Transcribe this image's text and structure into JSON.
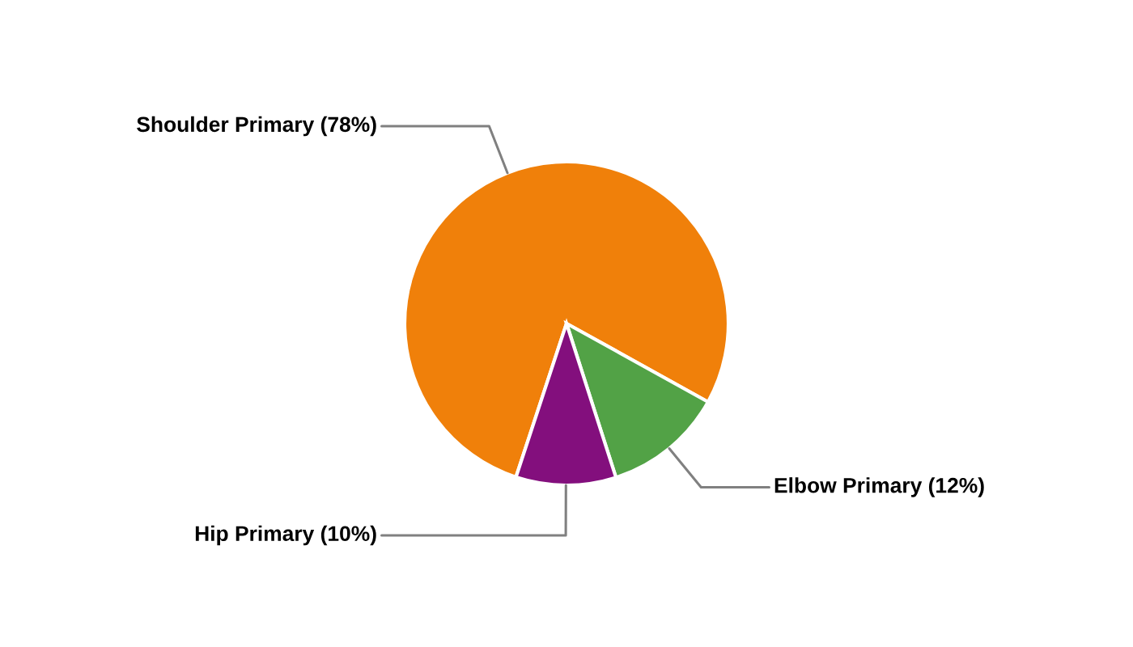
{
  "chart_data": {
    "type": "pie",
    "categories": [
      "Shoulder Primary",
      "Elbow Primary",
      "Hip Primary"
    ],
    "values": [
      78,
      12,
      10
    ],
    "colors": [
      "#f0800a",
      "#52a246",
      "#830f7d"
    ],
    "value_labels": [
      "(78%)",
      "(12%)",
      "(10%)"
    ]
  }
}
